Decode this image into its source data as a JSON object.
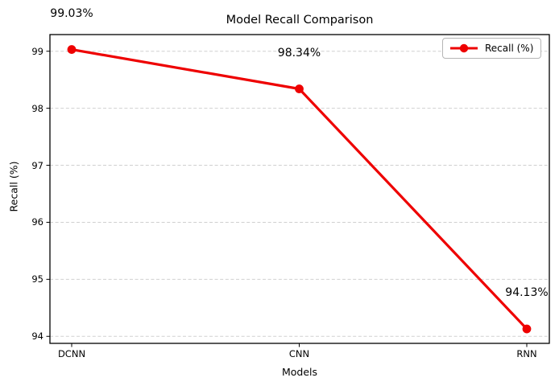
{
  "chart_data": {
    "type": "line",
    "title": "Model Recall Comparison",
    "xlabel": "Models",
    "ylabel": "Recall (%)",
    "categories": [
      "DCNN",
      "CNN",
      "RNN"
    ],
    "series": [
      {
        "name": "Recall (%)",
        "values": [
          99.03,
          98.34,
          94.13
        ]
      }
    ],
    "annotations": [
      "99.03%",
      "98.34%",
      "94.13%"
    ],
    "yticks": [
      94,
      95,
      96,
      97,
      98,
      99
    ],
    "ylim": [
      93.877,
      99.292
    ],
    "grid": "horizontal-dashed",
    "legend_position": "upper right",
    "line_color": "#ee0000",
    "grid_color": "#d0d0d0",
    "axis_color": "#000000",
    "marker": "circle"
  }
}
